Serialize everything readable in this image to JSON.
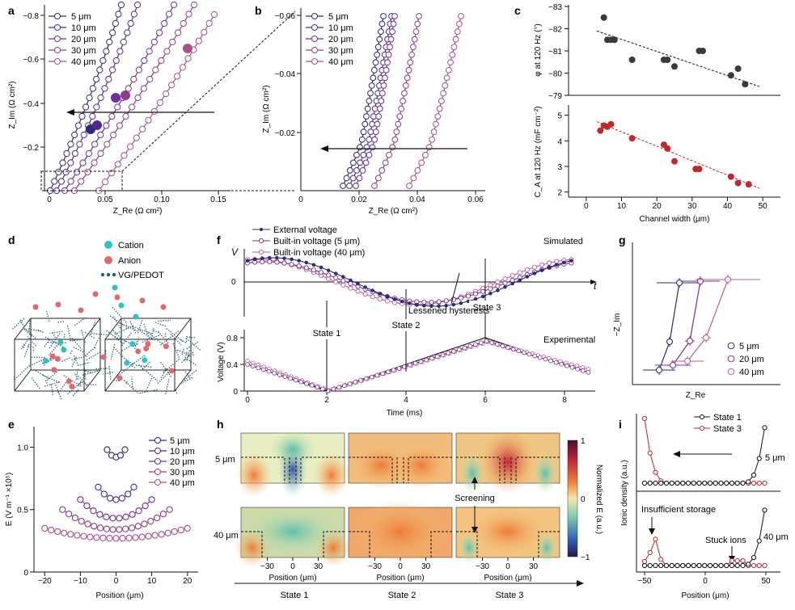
{
  "panels": {
    "a": {
      "label": "a",
      "ylabel": "Z_Im (Ω cm²)",
      "xlabel": "Z_Re (Ω cm²)",
      "yticks": [
        "−0.8",
        "−0.6",
        "−0.4",
        "−0.2",
        "0"
      ],
      "xticks": [
        "0",
        "0.05",
        "0.10",
        "0.15"
      ]
    },
    "b": {
      "label": "b",
      "ylabel": "Z_Im (Ω cm²)",
      "xlabel": "Z_Re (Ω cm²)",
      "yticks": [
        "−0.06",
        "−0.04",
        "−0.02",
        "0"
      ],
      "xticks": [
        "0.02",
        "0.04",
        "0.06"
      ]
    },
    "c": {
      "label": "c",
      "ylabel_top": "φ at 120 Hz (°)",
      "ylabel_bottom": "C_A at 120 Hz (mF cm⁻²)",
      "xlabel": "Channel width (μm)",
      "yticks_top": [
        "−83",
        "−82",
        "−81",
        "−80",
        "−79"
      ],
      "yticks_bottom": [
        "2",
        "3",
        "4",
        "5"
      ],
      "xticks": [
        "0",
        "10",
        "20",
        "30",
        "40",
        "50"
      ]
    },
    "d": {
      "label": "d",
      "legend": [
        "Cation",
        "Anion",
        "VG/PEDOT"
      ]
    },
    "e": {
      "label": "e",
      "ylabel": "E (V m⁻¹ ×10⁵)",
      "xlabel": "Position (μm)",
      "yticks": [
        "0",
        "0.5",
        "1.0"
      ],
      "xticks": [
        "−20",
        "−10",
        "0",
        "10",
        "20"
      ]
    },
    "f": {
      "label": "f",
      "legend": [
        "External voltage",
        "Built-in voltage (5 μm)",
        "Built-in voltage (40 μm)"
      ],
      "simulated": "Simulated",
      "experimental": "Experimental",
      "v_label": "V",
      "t_label": "t",
      "zero": "0",
      "states": [
        "State 1",
        "State 2",
        "State 3"
      ],
      "annotation": "Lessened hysteresis",
      "ylabel": "Voltage (V)",
      "xlabel": "Time (ms)",
      "yticks": [
        "0",
        "0.4",
        "0.8"
      ],
      "xticks": [
        "0",
        "2",
        "4",
        "6",
        "8"
      ]
    },
    "g": {
      "label": "g",
      "ylabel": "−Z_Im",
      "xlabel": "Z_Re",
      "legend": [
        "5 μm",
        "20 μm",
        "40 μm"
      ]
    },
    "h": {
      "label": "h",
      "rows": [
        "5 μm",
        "40 μm"
      ],
      "colorbar_label": "Normalized E (a.u.)",
      "colorbar_ticks": [
        "1",
        "0",
        "−1"
      ],
      "annotation": "Screening",
      "xlabel": "Position (μm)",
      "xticks": [
        "−30",
        "0",
        "30"
      ],
      "states": [
        "State 1",
        "State 2",
        "State 3"
      ]
    },
    "i": {
      "label": "i",
      "legend": [
        "State 1",
        "State 3"
      ],
      "ylabel": "Ionic density (a.u.)",
      "xlabel": "Position (μm)",
      "xticks": [
        "−50",
        "0",
        "50"
      ],
      "row_labels": [
        "5 μm",
        "40 μm"
      ],
      "annotations": [
        "Insufficient storage",
        "Stuck ions"
      ]
    }
  },
  "legend_widths": [
    "5 μm",
    "10 μm",
    "20 μm",
    "30 μm",
    "40 μm"
  ],
  "colors": {
    "w5": "#2c2a7a",
    "w10": "#4b2c8f",
    "w20": "#6f2f96",
    "w30": "#8e3d8c",
    "w40": "#a8528c",
    "red": "#c0282c",
    "cation": "#2bc4c4",
    "anion": "#e06a6a",
    "vg": "#2a5a78"
  },
  "chart_data": [
    {
      "panel": "c-top",
      "type": "scatter",
      "xlabel": "Channel width (μm)",
      "ylabel": "φ at 120 Hz (°)",
      "xlim": [
        -5,
        55
      ],
      "ylim": [
        -83,
        -79
      ],
      "x": [
        5,
        6,
        7,
        8,
        13,
        22,
        23,
        25,
        32,
        33,
        41,
        43,
        45
      ],
      "y": [
        -82.5,
        -81.5,
        -81.5,
        -81.5,
        -80.6,
        -80.6,
        -80.6,
        -80.3,
        -81.0,
        -81.0,
        -79.9,
        -80.2,
        -79.5
      ],
      "trend": [
        [
          3,
          -81.9
        ],
        [
          49,
          -79.4
        ]
      ]
    },
    {
      "panel": "c-bottom",
      "type": "scatter",
      "xlabel": "Channel width (μm)",
      "ylabel": "C_A at 120 Hz (mF cm⁻²)",
      "xlim": [
        -5,
        55
      ],
      "ylim": [
        1.8,
        5.4
      ],
      "x": [
        4,
        5,
        6,
        7,
        13,
        22,
        23,
        25,
        31,
        32,
        41,
        43,
        46
      ],
      "y": [
        4.4,
        4.6,
        4.55,
        4.65,
        4.1,
        3.85,
        3.7,
        3.2,
        2.9,
        2.9,
        2.6,
        2.35,
        2.3
      ],
      "trend": [
        [
          3,
          4.75
        ],
        [
          49,
          2.15
        ]
      ]
    },
    {
      "panel": "e",
      "type": "scatter",
      "xlabel": "Position (μm)",
      "ylabel": "E (V m⁻¹ ×10⁵)",
      "xlim": [
        -23,
        23
      ],
      "ylim": [
        0,
        1.1
      ],
      "series": [
        {
          "name": "5 μm",
          "halfwidth": 2.5,
          "center": 0.92,
          "edge": 0.98
        },
        {
          "name": "10 μm",
          "halfwidth": 5,
          "center": 0.58,
          "edge": 0.68
        },
        {
          "name": "20 μm",
          "halfwidth": 10,
          "center": 0.43,
          "edge": 0.58
        },
        {
          "name": "30 μm",
          "halfwidth": 15,
          "center": 0.34,
          "edge": 0.5
        },
        {
          "name": "40 μm",
          "halfwidth": 20,
          "center": 0.27,
          "edge": 0.35
        }
      ]
    }
  ]
}
